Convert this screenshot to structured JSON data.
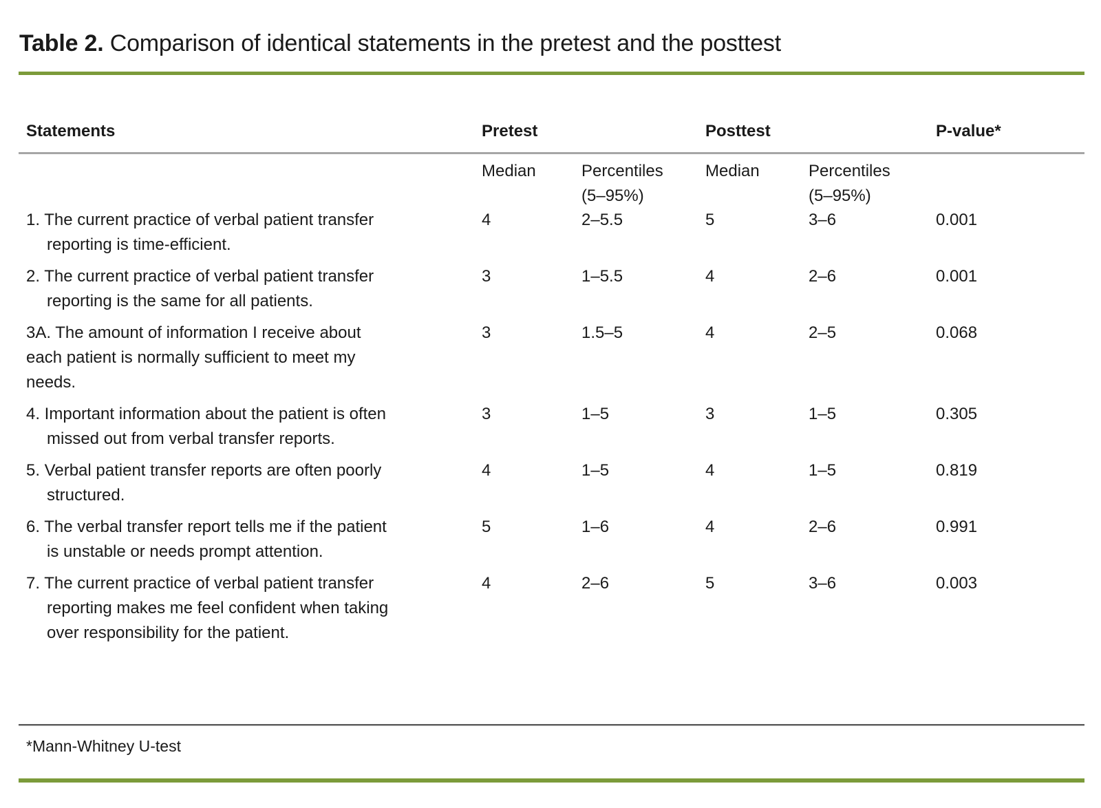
{
  "title": {
    "label": "Table 2.",
    "caption": "Comparison of identical statements in the pretest and the posttest"
  },
  "table": {
    "headers": {
      "statements": "Statements",
      "pretest": "Pretest",
      "posttest": "Posttest",
      "pvalue": "P-value*"
    },
    "subheaders": {
      "median": "Median",
      "percentiles": "Percentiles\n(5–95%)"
    },
    "rows": [
      {
        "statement": "1. The current practice of verbal patient transfer\nreporting is time-efficient.",
        "pretest_median": "4",
        "pretest_percentiles": "2–5.5",
        "posttest_median": "5",
        "posttest_percentiles": "3–6",
        "p_value": "0.001"
      },
      {
        "statement": "2. The current practice of verbal patient transfer\nreporting is the same for all patients.",
        "pretest_median": "3",
        "pretest_percentiles": "1–5.5",
        "posttest_median": "4",
        "posttest_percentiles": "2–6",
        "p_value": "0.001"
      },
      {
        "statement": "3A. The amount of information I receive about\neach patient is normally sufficient to meet my\nneeds.",
        "pretest_median": "3",
        "pretest_percentiles": "1.5–5",
        "posttest_median": "4",
        "posttest_percentiles": "2–5",
        "p_value": "0.068"
      },
      {
        "statement": "4. Important information about the patient is often\nmissed out from verbal transfer reports.",
        "pretest_median": "3",
        "pretest_percentiles": "1–5",
        "posttest_median": "3",
        "posttest_percentiles": "1–5",
        "p_value": "0.305"
      },
      {
        "statement": "5. Verbal patient transfer reports are often poorly\nstructured.",
        "pretest_median": "4",
        "pretest_percentiles": "1–5",
        "posttest_median": "4",
        "posttest_percentiles": "1–5",
        "p_value": "0.819"
      },
      {
        "statement": "6. The verbal transfer report tells me if the patient\nis unstable or needs prompt attention.",
        "pretest_median": "5",
        "pretest_percentiles": "1–6",
        "posttest_median": "4",
        "posttest_percentiles": "2–6",
        "p_value": "0.991"
      },
      {
        "statement": "7. The current practice of verbal patient transfer\nreporting makes me feel confident when taking\nover responsibility for the patient.",
        "pretest_median": "4",
        "pretest_percentiles": "2–6",
        "posttest_median": "5",
        "posttest_percentiles": "3–6",
        "p_value": "0.003"
      }
    ]
  },
  "footnote": "*Mann-Whitney U-test",
  "colors": {
    "accent_green": "#7c9b3a",
    "rule_gray": "#a6a6a6",
    "rule_dark": "#595959",
    "text_color": "#1a1a1a"
  }
}
